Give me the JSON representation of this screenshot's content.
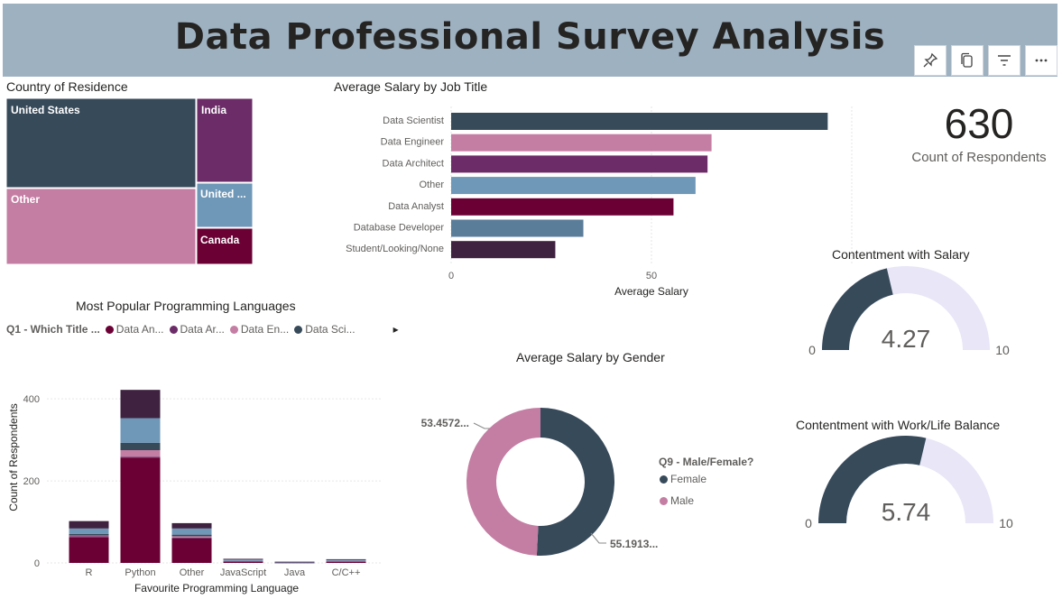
{
  "header": {
    "title": "Data Professional Survey Analysis"
  },
  "toolbar": [
    {
      "name": "pin-icon",
      "label": "Pin visual"
    },
    {
      "name": "copy-icon",
      "label": "Copy visual"
    },
    {
      "name": "filter-icon",
      "label": "Filters"
    },
    {
      "name": "more-options-icon",
      "label": "More options"
    }
  ],
  "treemap": {
    "title": "Country of Residence",
    "cells": [
      {
        "label": "United States",
        "color": "#374a5a"
      },
      {
        "label": "India",
        "color": "#6b2c68"
      },
      {
        "label": "United ...",
        "color": "#6f97b8"
      },
      {
        "label": "Canada",
        "color": "#6b0035"
      },
      {
        "label": "Other",
        "color": "#c47ea3"
      }
    ]
  },
  "salary_by_job": {
    "title": "Average Salary by Job Title",
    "xlabel": "Average Salary"
  },
  "kpi": {
    "value": "630",
    "label": "Count of Respondents"
  },
  "gauge_salary": {
    "title": "Contentment with Salary",
    "value": 4.27,
    "value_label": "4.27",
    "min": 0,
    "max": 10,
    "min_label": "0",
    "max_label": "10"
  },
  "gauge_balance": {
    "title": "Contentment with Work/Life Balance",
    "value": 5.74,
    "value_label": "5.74",
    "min": 0,
    "max": 10,
    "min_label": "0",
    "max_label": "10"
  },
  "languages": {
    "title": "Most Popular Programming Languages",
    "legend_title": "Q1 - Which Title ...",
    "legend_items": [
      {
        "label": "Data An...",
        "color": "#6b0035"
      },
      {
        "label": "Data Ar...",
        "color": "#6b2c68"
      },
      {
        "label": "Data En...",
        "color": "#c47ea3"
      },
      {
        "label": "Data Sci...",
        "color": "#374a5a"
      }
    ],
    "legend_next": "▸"
  },
  "gender": {
    "title": "Average Salary by Gender",
    "legend_title": "Q9 - Male/Female?",
    "legend_items": [
      {
        "label": "Female",
        "color": "#374a5a"
      },
      {
        "label": "Male",
        "color": "#c47ea3"
      }
    ],
    "label_female": "55.1913...",
    "label_male": "53.4572..."
  },
  "chart_data": [
    {
      "type": "bar",
      "orientation": "horizontal",
      "title": "Average Salary by Job Title",
      "xlabel": "Average Salary",
      "ylabel": "",
      "categories": [
        "Data Scientist",
        "Data Engineer",
        "Data Architect",
        "Other",
        "Data Analyst",
        "Database Developer",
        "Student/Looking/None"
      ],
      "values": [
        94,
        65,
        64,
        61,
        55.5,
        33,
        26
      ],
      "colors": [
        "#374a5a",
        "#c47ea3",
        "#6b2c68",
        "#6f97b8",
        "#6b0035",
        "#5a7d99",
        "#3f2140"
      ],
      "xticks": [
        0,
        50
      ],
      "xlim": [
        0,
        100
      ],
      "grid": true
    },
    {
      "type": "bar",
      "stacked": true,
      "title": "Most Popular Programming Languages",
      "xlabel": "Favourite Programming Language",
      "ylabel": "Count of Respondents",
      "categories": [
        "R",
        "Python",
        "Other",
        "JavaScript",
        "Java",
        "C/C++"
      ],
      "yticks": [
        0,
        200,
        400
      ],
      "ylim": [
        0,
        440
      ],
      "series": [
        {
          "name": "Data An...",
          "color": "#6b0035",
          "values": [
            62,
            257,
            60,
            4,
            1,
            3
          ]
        },
        {
          "name": "Data Ar...",
          "color": "#6b2c68",
          "values": [
            3,
            2,
            2,
            0,
            0,
            1
          ]
        },
        {
          "name": "Data En...",
          "color": "#c47ea3",
          "values": [
            2,
            16,
            3,
            1,
            0,
            1
          ]
        },
        {
          "name": "Data Sci...",
          "color": "#374a5a",
          "values": [
            4,
            18,
            4,
            0,
            0,
            0
          ]
        },
        {
          "color": "#6f97b8",
          "values": [
            13,
            60,
            15,
            3,
            1,
            2
          ]
        },
        {
          "color": "#3f2140",
          "values": [
            18,
            69,
            13,
            2,
            1,
            2
          ]
        }
      ]
    },
    {
      "type": "pie",
      "donut": true,
      "title": "Average Salary by Gender",
      "categories": [
        "Female",
        "Male"
      ],
      "values": [
        55.1913,
        53.4572
      ],
      "colors": [
        "#374a5a",
        "#c47ea3"
      ]
    }
  ]
}
